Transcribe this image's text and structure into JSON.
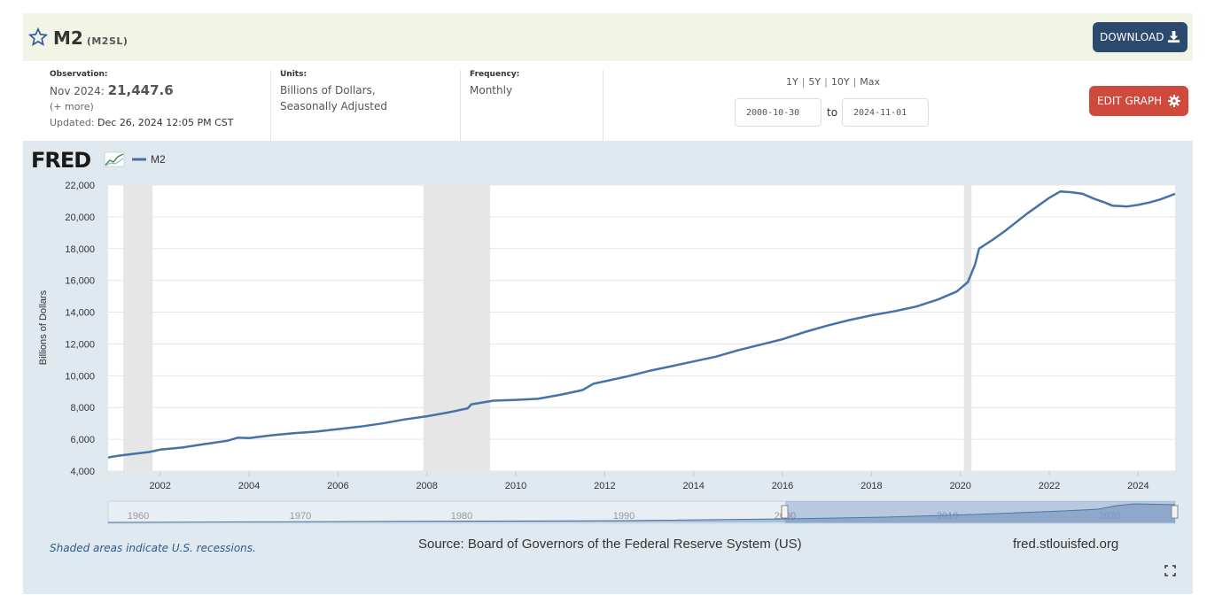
{
  "header": {
    "title": "M2",
    "series_id": "(M2SL)",
    "download_label": "DOWNLOAD"
  },
  "meta": {
    "observation_label": "Observation:",
    "observation_date": "Nov 2024:",
    "observation_value": "21,447.6",
    "more_label": "(+ more)",
    "updated_label": "Updated:",
    "updated_value": "Dec 26, 2024 12:05 PM CST",
    "units_label": "Units:",
    "units_line1": "Billions of Dollars,",
    "units_line2": "Seasonally Adjusted",
    "frequency_label": "Frequency:",
    "frequency_value": "Monthly"
  },
  "range": {
    "btn_1y": "1Y",
    "btn_5y": "5Y",
    "btn_10y": "10Y",
    "btn_max": "Max",
    "start_date": "2000-10-30",
    "to_label": "to",
    "end_date": "2024-11-01",
    "edit_label": "EDIT GRAPH"
  },
  "footer": {
    "recession_note": "Shaded areas indicate U.S. recessions.",
    "source": "Source: Board of Governors of the Federal Reserve System (US)",
    "url": "fred.stlouisfed.org"
  },
  "chart_data": {
    "type": "line",
    "logo": "FRED",
    "legend_entry": "M2",
    "ylabel": "Billions of Dollars",
    "xlim": [
      2000.83,
      2024.83
    ],
    "ylim": [
      4000,
      22000
    ],
    "y_ticks": [
      4000,
      6000,
      8000,
      10000,
      12000,
      14000,
      16000,
      18000,
      20000,
      22000
    ],
    "y_tick_labels": [
      "4,000",
      "6,000",
      "8,000",
      "10,000",
      "12,000",
      "14,000",
      "16,000",
      "18,000",
      "20,000",
      "22,000"
    ],
    "x_ticks": [
      2002,
      2004,
      2006,
      2008,
      2010,
      2012,
      2014,
      2016,
      2018,
      2020,
      2022,
      2024
    ],
    "x_tick_labels": [
      "2002",
      "2004",
      "2006",
      "2008",
      "2010",
      "2012",
      "2014",
      "2016",
      "2018",
      "2020",
      "2022",
      "2024"
    ],
    "recessions": [
      [
        2001.17,
        2001.83
      ],
      [
        2007.92,
        2009.42
      ],
      [
        2020.08,
        2020.25
      ]
    ],
    "grid": true,
    "series": [
      {
        "name": "M2",
        "color": "#4572a7",
        "points": [
          [
            2000.83,
            4850
          ],
          [
            2001.0,
            4940
          ],
          [
            2001.33,
            5060
          ],
          [
            2001.75,
            5200
          ],
          [
            2002.0,
            5350
          ],
          [
            2002.5,
            5480
          ],
          [
            2003.0,
            5700
          ],
          [
            2003.5,
            5900
          ],
          [
            2003.75,
            6100
          ],
          [
            2004.0,
            6080
          ],
          [
            2004.5,
            6250
          ],
          [
            2005.0,
            6380
          ],
          [
            2005.5,
            6480
          ],
          [
            2006.0,
            6640
          ],
          [
            2006.5,
            6800
          ],
          [
            2007.0,
            7000
          ],
          [
            2007.5,
            7250
          ],
          [
            2008.0,
            7450
          ],
          [
            2008.5,
            7700
          ],
          [
            2008.92,
            7950
          ],
          [
            2009.0,
            8200
          ],
          [
            2009.5,
            8430
          ],
          [
            2010.0,
            8480
          ],
          [
            2010.5,
            8550
          ],
          [
            2011.0,
            8800
          ],
          [
            2011.5,
            9100
          ],
          [
            2011.75,
            9500
          ],
          [
            2012.0,
            9650
          ],
          [
            2012.5,
            9950
          ],
          [
            2013.0,
            10300
          ],
          [
            2013.5,
            10600
          ],
          [
            2014.0,
            10900
          ],
          [
            2014.5,
            11200
          ],
          [
            2015.0,
            11600
          ],
          [
            2015.5,
            11950
          ],
          [
            2016.0,
            12300
          ],
          [
            2016.5,
            12750
          ],
          [
            2017.0,
            13150
          ],
          [
            2017.5,
            13500
          ],
          [
            2018.0,
            13800
          ],
          [
            2018.5,
            14050
          ],
          [
            2019.0,
            14350
          ],
          [
            2019.5,
            14800
          ],
          [
            2019.92,
            15300
          ],
          [
            2020.17,
            15900
          ],
          [
            2020.33,
            17000
          ],
          [
            2020.42,
            18000
          ],
          [
            2020.75,
            18600
          ],
          [
            2021.0,
            19100
          ],
          [
            2021.5,
            20200
          ],
          [
            2021.75,
            20700
          ],
          [
            2022.0,
            21200
          ],
          [
            2022.25,
            21600
          ],
          [
            2022.5,
            21550
          ],
          [
            2022.75,
            21450
          ],
          [
            2023.0,
            21150
          ],
          [
            2023.25,
            20900
          ],
          [
            2023.42,
            20700
          ],
          [
            2023.75,
            20650
          ],
          [
            2024.0,
            20750
          ],
          [
            2024.25,
            20900
          ],
          [
            2024.5,
            21100
          ],
          [
            2024.83,
            21447.6
          ]
        ]
      }
    ],
    "navigator": {
      "ticks": [
        "1960",
        "1970",
        "1980",
        "1990",
        "2000",
        "2010",
        "2020"
      ]
    }
  }
}
